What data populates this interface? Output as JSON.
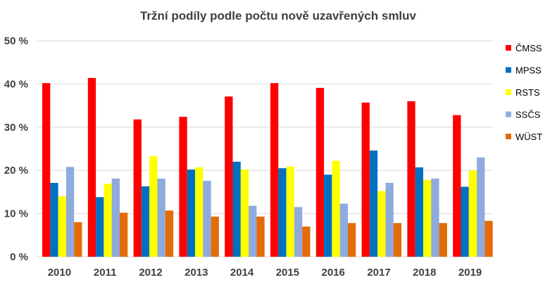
{
  "chart_data": {
    "type": "bar",
    "title": "Tržní podíly podle počtu nově uzavřených smluv",
    "categories": [
      "2010",
      "2011",
      "2012",
      "2013",
      "2014",
      "2015",
      "2016",
      "2017",
      "2018",
      "2019"
    ],
    "series": [
      {
        "name": "ČMSS",
        "color": "#ff0000",
        "values": [
          40.2,
          41.4,
          31.8,
          32.4,
          37.1,
          40.2,
          39.1,
          35.7,
          36.0,
          32.8
        ]
      },
      {
        "name": "MPSS",
        "color": "#0070c0",
        "values": [
          17.1,
          13.8,
          16.3,
          20.2,
          22.0,
          20.5,
          19.0,
          24.6,
          20.7,
          16.2
        ]
      },
      {
        "name": "RSTS",
        "color": "#ffff00",
        "values": [
          14.0,
          16.9,
          23.3,
          20.7,
          20.2,
          20.9,
          22.2,
          15.2,
          17.8,
          20.0
        ]
      },
      {
        "name": "SSČS",
        "color": "#8faadc",
        "values": [
          20.8,
          18.1,
          18.1,
          17.6,
          11.8,
          11.5,
          12.3,
          17.1,
          18.1,
          23.0
        ]
      },
      {
        "name": "WÜST",
        "color": "#e36c09",
        "values": [
          8.0,
          10.2,
          10.7,
          9.3,
          9.3,
          7.0,
          7.8,
          7.8,
          7.8,
          8.3
        ]
      }
    ],
    "y_ticks": [
      "0 %",
      "10 %",
      "20 %",
      "30 %",
      "40 %",
      "50 %"
    ],
    "ylim": [
      0,
      50
    ],
    "grid": true,
    "legend_position": "right"
  }
}
